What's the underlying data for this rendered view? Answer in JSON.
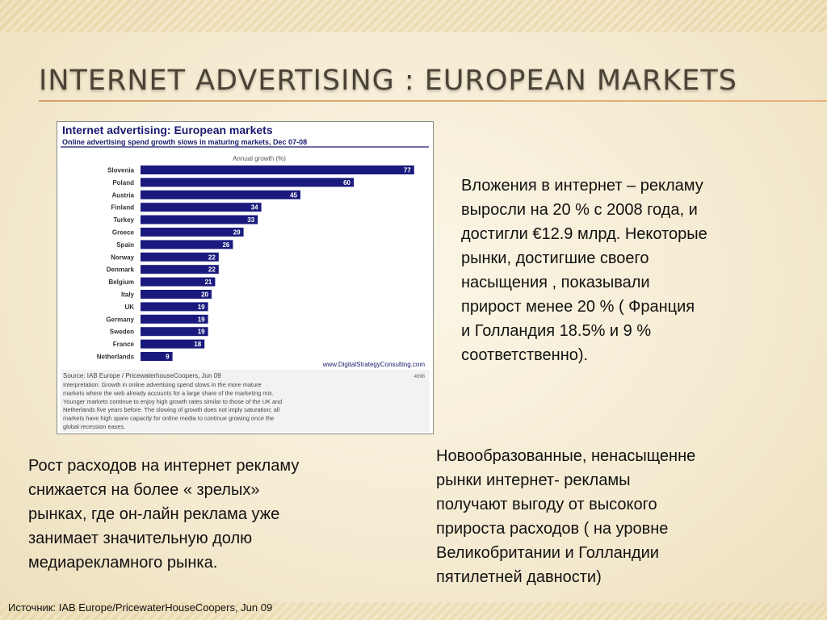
{
  "slide": {
    "title": "INTERNET ADVERTISING : EUROPEAN MARKETS",
    "paragraph_right": "Вложения в интернет – рекламу\nвыросли на 20 % с 2008 года,  и\nдостигли €12.9 млрд.  Некоторые\nрынки, достигшие своего\nнасыщения ,  показывали\nприрост менее 20 % ( Франция\nи Голландия 18.5% и 9 %\nсоответственно).",
    "paragraph_bottom_left": "Рост  расходов на интернет рекламу\nснижается на более  « зрелых»\nрынках,  где он-лайн реклама уже\nзанимает значительную долю\nмедиарекламного рынка.",
    "paragraph_bottom_right": "Новообразованные, ненасыщенне\nрынки интернет- рекламы\nполучают выгоду от  высокого\nприроста расходов  ( на уровне\nВеликобритании и Голландии\nпятилетней  давности)",
    "source_note": "Источник: IAB Europe/PricewaterHouseCoopers, Jun 09"
  },
  "colors": {
    "bar": "#1a1a7e",
    "chart_title": "#1a1a6e",
    "rule": "#d8a06a",
    "note_bg": "#f2f2f2"
  },
  "chart_data": {
    "type": "bar",
    "orientation": "horizontal",
    "title": "Internet advertising: European markets",
    "subtitle": "Online advertising spend growth slows in maturing markets, Dec 07-08",
    "xlabel": "Annual growth (%)",
    "categories": [
      "Slovenia",
      "Poland",
      "Austria",
      "Finland",
      "Turkey",
      "Greece",
      "Spain",
      "Norway",
      "Denmark",
      "Belgium",
      "Italy",
      "UK",
      "Germany",
      "Sweden",
      "France",
      "Netherlands"
    ],
    "values": [
      77,
      60,
      45,
      34,
      33,
      29,
      26,
      22,
      22,
      21,
      20,
      19,
      19,
      19,
      18,
      9
    ],
    "xlim": [
      0,
      80
    ],
    "grid": false,
    "legend": "none",
    "watermark": "www.DigitalStrategyConsulting.com",
    "code": "4698",
    "source": "Source: IAB Europe / PricewaterhouseCoopers, Jun 09",
    "interpretation": [
      "Interpretation: Growth in online advertising spend slows in the more mature",
      "markets where the web already accounts for a large share of the marketing mix.",
      "Younger markets continue to enjoy high growth rates similar to those of the UK and",
      "Netherlands five years before. The slowing of growth does not imply saturation; all",
      "markets have high spare capacity for online media to continue growing once the",
      "global recession eases."
    ]
  }
}
